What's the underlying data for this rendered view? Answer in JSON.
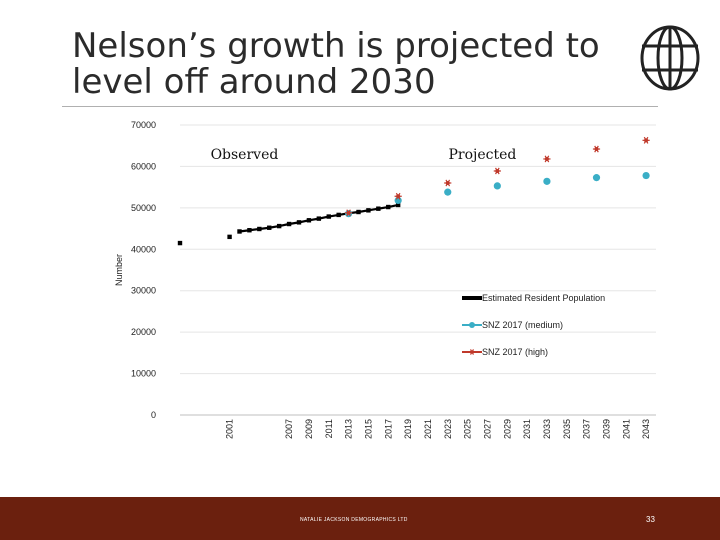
{
  "slide": {
    "title_line1": "Nelson’s growth is projected to",
    "title_line2": "level off around 2030",
    "footer_text": "NATALIE JACKSON DEMOGRAPHICS LTD",
    "page_number": "33"
  },
  "colors": {
    "footer_bg": "#6b200e",
    "observed": "#000000",
    "medium": "#3aaec6",
    "high": "#c0392b",
    "grid": "#e5e5e5"
  },
  "chart_data": {
    "type": "line",
    "title": "",
    "xlabel": "",
    "ylabel": "Number",
    "ylim": [
      0,
      70000
    ],
    "yticks": [
      0,
      10000,
      20000,
      30000,
      40000,
      50000,
      60000,
      70000
    ],
    "xlim": [
      1996,
      2044
    ],
    "xticks": [
      2001,
      2007,
      2009,
      2011,
      2013,
      2015,
      2017,
      2019,
      2021,
      2023,
      2025,
      2027,
      2029,
      2031,
      2033,
      2035,
      2037,
      2039,
      2041,
      2043
    ],
    "annotations": [
      {
        "text": "Observed",
        "at_year": 2002.5,
        "at_value": 61800
      },
      {
        "text": "Projected",
        "at_year": 2026.5,
        "at_value": 61800
      }
    ],
    "series": [
      {
        "name": "Estimated Resident Population",
        "x": [
          1996,
          2001,
          2002,
          2003,
          2004,
          2005,
          2006,
          2007,
          2008,
          2009,
          2010,
          2011,
          2012,
          2013,
          2014,
          2015,
          2016,
          2017,
          2018
        ],
        "values": [
          41500,
          43000,
          44300,
          44600,
          44900,
          45200,
          45600,
          46100,
          46500,
          47000,
          47400,
          47900,
          48300,
          48700,
          49000,
          49400,
          49800,
          50200,
          50700
        ]
      },
      {
        "name": "SNZ 2017 (medium)",
        "x": [
          2013,
          2018,
          2023,
          2028,
          2033,
          2038,
          2043
        ],
        "values": [
          48600,
          51800,
          53800,
          55300,
          56400,
          57300,
          57800
        ]
      },
      {
        "name": "SNZ 2017 (high)",
        "x": [
          2013,
          2018,
          2023,
          2028,
          2033,
          2038,
          2043
        ],
        "values": [
          48800,
          52800,
          56000,
          58900,
          61800,
          64200,
          66300
        ]
      }
    ]
  }
}
